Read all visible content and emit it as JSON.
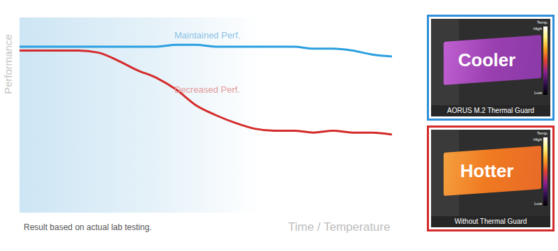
{
  "chart_data": {
    "type": "line",
    "x_label": "Time / Temperature",
    "y_label": "Performance",
    "footnote": "Result based on actual lab testing.",
    "x": [
      0,
      5,
      10,
      15,
      20,
      25,
      30,
      35,
      40,
      45,
      50,
      55,
      60,
      65,
      70,
      75,
      80,
      85,
      90,
      95
    ],
    "series": [
      {
        "name": "Maintained Perf.",
        "color": "#2a9fe0",
        "values": [
          85,
          85,
          85,
          85,
          85,
          85,
          85,
          85,
          86,
          86,
          85,
          85,
          85,
          85,
          85,
          84,
          84,
          83,
          81,
          80
        ]
      },
      {
        "name": "Decreased Perf.",
        "color": "#d42a2a",
        "values": [
          83,
          83,
          83,
          83,
          82,
          78,
          73,
          69,
          63,
          55,
          50,
          46,
          43,
          42,
          42,
          41,
          42,
          41,
          41,
          40
        ]
      }
    ],
    "xlim": [
      0,
      100
    ],
    "ylim": [
      0,
      100
    ],
    "tick_labels": false,
    "grid": false
  },
  "thermal_images": [
    {
      "label": "Cooler",
      "caption": "AORUS M.2 Thermal Guard",
      "color": "#2f8fd8"
    },
    {
      "label": "Hotter",
      "caption": "Without Thermal Guard",
      "color": "#d42a2a"
    }
  ],
  "color_bar": {
    "title": "Temp.",
    "high": "High",
    "low": "Low"
  }
}
